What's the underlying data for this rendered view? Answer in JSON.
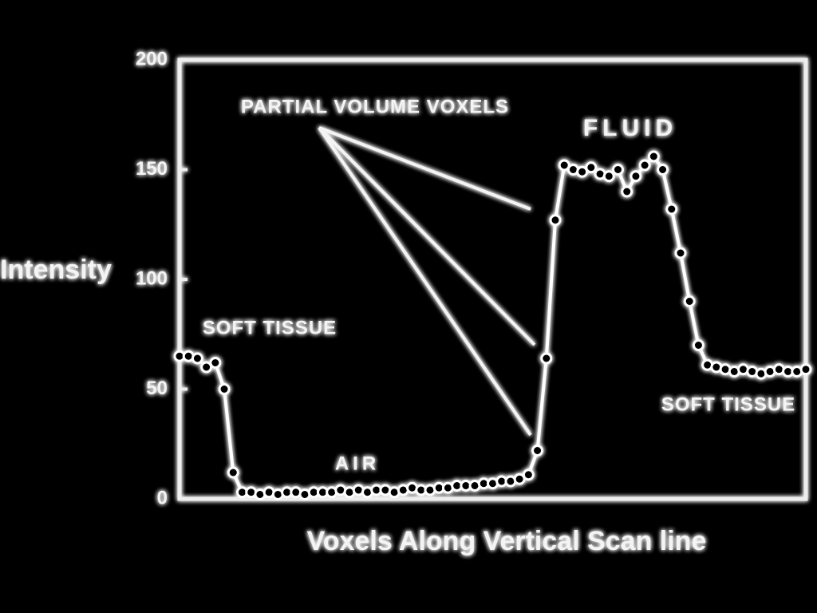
{
  "chart_data": {
    "type": "line",
    "y_label": "Intensity",
    "x_label": "Voxels Along Vertical Scan line",
    "x": [
      0,
      1,
      2,
      3,
      4,
      5,
      6,
      7,
      8,
      9,
      10,
      11,
      12,
      13,
      14,
      15,
      16,
      17,
      18,
      19,
      20,
      21,
      22,
      23,
      24,
      25,
      26,
      27,
      28,
      29,
      30,
      31,
      32,
      33,
      34,
      35,
      36,
      37,
      38,
      39,
      40,
      41,
      42,
      43,
      44,
      45,
      46,
      47,
      48,
      49,
      50,
      51,
      52,
      53,
      54,
      55,
      56,
      57,
      58,
      59,
      60,
      61,
      62,
      63,
      64,
      65,
      66,
      67,
      68,
      69,
      70
    ],
    "values": [
      65,
      65,
      64,
      60,
      62,
      50,
      12,
      3,
      3,
      2,
      3,
      2,
      3,
      3,
      2,
      3,
      3,
      3,
      4,
      3,
      4,
      3,
      4,
      4,
      3,
      4,
      5,
      4,
      4,
      5,
      5,
      6,
      6,
      6,
      7,
      7,
      8,
      8,
      9,
      11,
      22,
      64,
      127,
      152,
      150,
      149,
      151,
      148,
      147,
      150,
      140,
      147,
      152,
      156,
      150,
      132,
      112,
      90,
      70,
      61,
      60,
      59,
      58,
      59,
      58,
      57,
      58,
      59,
      58,
      58,
      59
    ],
    "color": "#ffffff",
    "xlim": [
      0,
      70
    ],
    "ylim": [
      0,
      200
    ],
    "yticks": [
      0,
      50,
      100,
      150,
      200
    ],
    "annotations": [
      "PARTIAL VOLUME VOXELS",
      "FLUID",
      "SOFT TISSUE",
      "AIR",
      "SOFT TISSUE"
    ]
  }
}
